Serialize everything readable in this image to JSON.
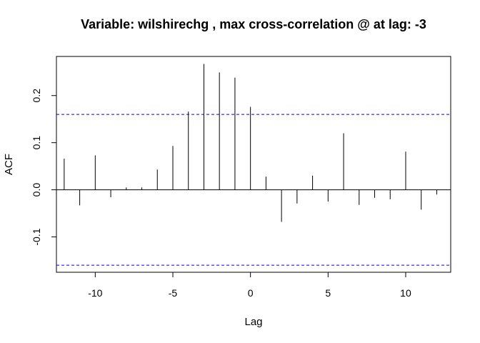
{
  "chart_data": {
    "type": "bar",
    "title": "Variable: wilshirechg , max cross-correlation @ at lag: -3",
    "xlabel": "Lag",
    "ylabel": "ACF",
    "xlim": [
      -12.5,
      12.9
    ],
    "ylim": [
      -0.175,
      0.283
    ],
    "x_ticks": [
      -10,
      -5,
      0,
      5,
      10
    ],
    "x_tick_labels": [
      "-10",
      "-5",
      "0",
      "5",
      "10"
    ],
    "y_ticks": [
      -0.1,
      0.0,
      0.1,
      0.2
    ],
    "y_tick_labels": [
      "-0.1",
      "0.0",
      "0.1",
      "0.2"
    ],
    "lags": [
      -12,
      -11,
      -10,
      -9,
      -8,
      -7,
      -6,
      -5,
      -4,
      -3,
      -2,
      -1,
      0,
      1,
      2,
      3,
      4,
      5,
      6,
      7,
      8,
      9,
      10,
      11,
      12
    ],
    "values": [
      0.066,
      -0.033,
      0.073,
      -0.016,
      0.005,
      0.005,
      0.043,
      0.093,
      0.166,
      0.267,
      0.249,
      0.238,
      0.176,
      0.028,
      -0.068,
      -0.029,
      0.03,
      -0.025,
      0.12,
      -0.032,
      -0.017,
      -0.02,
      0.081,
      -0.042,
      -0.01
    ],
    "confidence_bound": 0.16,
    "colors": {
      "bars": "#000000",
      "bounds": "#0000ff",
      "zero": "#000000",
      "frame": "#000000"
    },
    "grid": false,
    "legend": "none"
  }
}
